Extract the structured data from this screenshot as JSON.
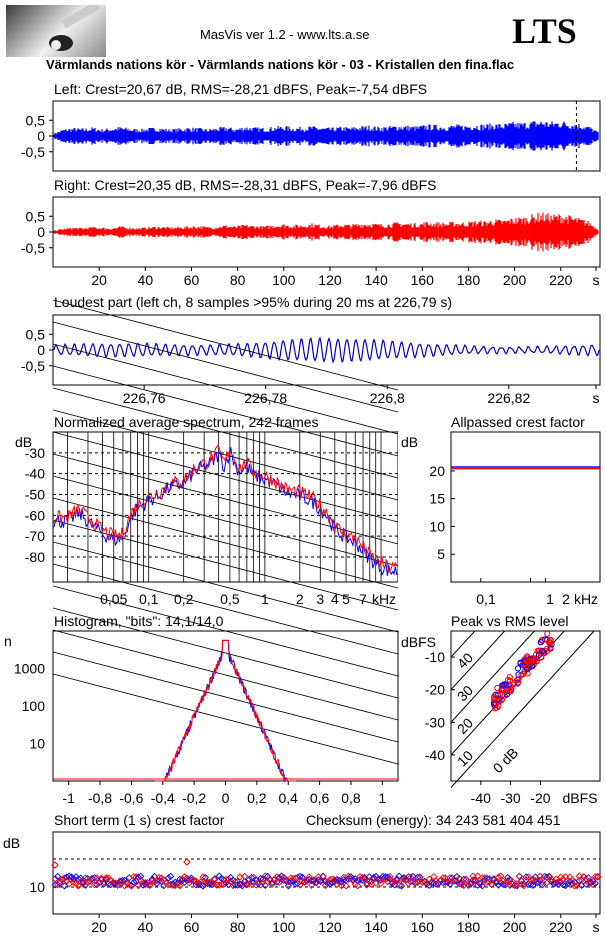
{
  "header": {
    "app_title": "MasVis ver 1.2 - www.lts.a.se",
    "logo_text": "LTS",
    "file_title": "Värmlands nations kör - Värmlands nations kör - 03 - Kristallen den fina.flac"
  },
  "panels": {
    "left": {
      "title": "Left: Crest=20,67 dB, RMS=-28,21 dBFS, Peak=-7,54 dBFS",
      "color": "#0000ff"
    },
    "right": {
      "title": "Right: Crest=20,35 dB, RMS=-28,31 dBFS, Peak=-7,96 dBFS",
      "color": "#ff0000"
    },
    "loudest": {
      "title": "Loudest part (left  ch, 8 samples >95% during 20 ms at 226,79 s)"
    },
    "spectrum": {
      "title": "Normalized average spectrum, 242 frames"
    },
    "crest": {
      "title": "Allpassed crest factor"
    },
    "histogram": {
      "title": "Histogram, \"bits\": 14,1/14,0"
    },
    "peakrms": {
      "title": "Peak vs RMS level"
    },
    "shortterm": {
      "title": "Short term (1 s) crest factor",
      "checksum": "Checksum (energy):   34 243 581 404 451"
    }
  },
  "chart_data": [
    {
      "type": "line",
      "title": "Left: Crest=20,67 dB, RMS=-28,21 dBFS, Peak=-7,54 dBFS",
      "xlim": [
        0,
        237
      ],
      "ylim": [
        -1,
        1
      ],
      "yticks": [
        "0,5",
        "0",
        "-0,5"
      ],
      "marker_line_x": 226.79,
      "series": [
        {
          "envelope": [
            0.05,
            0.12,
            0.14,
            0.13,
            0.15,
            0.12,
            0.14,
            0.16,
            0.13,
            0.12,
            0.14,
            0.15,
            0.12,
            0.13,
            0.15,
            0.14,
            0.12,
            0.14,
            0.16,
            0.13,
            0.17,
            0.15,
            0.14,
            0.16,
            0.18,
            0.15,
            0.16,
            0.17,
            0.15,
            0.14,
            0.16,
            0.15,
            0.17,
            0.18,
            0.16,
            0.17,
            0.19,
            0.18,
            0.17,
            0.2,
            0.19,
            0.18,
            0.2,
            0.19,
            0.21,
            0.2,
            0.22,
            0.21,
            0.24,
            0.23,
            0.26,
            0.28,
            0.25,
            0.27,
            0.24,
            0.22,
            0.17,
            0.06
          ]
        }
      ]
    },
    {
      "type": "line",
      "title": "Right: Crest=20,35 dB, RMS=-28,31 dBFS, Peak=-7,96 dBFS",
      "xlim": [
        0,
        237
      ],
      "ylim": [
        -1,
        1
      ],
      "yticks": [
        "0,5",
        "0",
        "-0,5"
      ],
      "x_ticks": [
        "20",
        "40",
        "60",
        "80",
        "100",
        "120",
        "140",
        "160",
        "180",
        "200",
        "220",
        "s"
      ],
      "series": [
        {
          "envelope": [
            0.03,
            0.06,
            0.08,
            0.07,
            0.09,
            0.08,
            0.07,
            0.1,
            0.08,
            0.07,
            0.09,
            0.1,
            0.08,
            0.09,
            0.1,
            0.11,
            0.09,
            0.1,
            0.12,
            0.1,
            0.13,
            0.11,
            0.1,
            0.13,
            0.14,
            0.12,
            0.13,
            0.15,
            0.12,
            0.11,
            0.14,
            0.13,
            0.15,
            0.16,
            0.14,
            0.15,
            0.17,
            0.16,
            0.15,
            0.18,
            0.17,
            0.16,
            0.18,
            0.17,
            0.2,
            0.19,
            0.22,
            0.21,
            0.25,
            0.26,
            0.3,
            0.34,
            0.3,
            0.32,
            0.28,
            0.24,
            0.18,
            0.04
          ]
        }
      ]
    },
    {
      "type": "line",
      "title": "Loudest part (left  ch, 8 samples >95% during 20 ms at 226,79 s)",
      "xlim": [
        226.745,
        226.835
      ],
      "ylim": [
        -1,
        1
      ],
      "yticks": [
        "0,5",
        "0",
        "-0,5"
      ],
      "x_ticks": [
        "226,76",
        "226,78",
        "226,8",
        "226,82",
        "s"
      ],
      "x_tick_values": [
        226.76,
        226.78,
        226.8,
        226.82
      ]
    },
    {
      "type": "line",
      "title": "Normalized average spectrum, 242 frames",
      "ylabel": "dB",
      "yticks": [
        "-30",
        "-40",
        "-50",
        "-60",
        "-70",
        "-80"
      ],
      "x_ticks": [
        "0,05",
        "0,1",
        "0,2",
        "0,5",
        "1",
        "2",
        "3",
        "4",
        "5",
        "7",
        "kHz"
      ],
      "series": [
        {
          "x": [
            0.02,
            0.025,
            0.03,
            0.04,
            0.05,
            0.06,
            0.07,
            0.08,
            0.1,
            0.12,
            0.15,
            0.2,
            0.25,
            0.3,
            0.35,
            0.4,
            0.45,
            0.5,
            0.55,
            0.6,
            0.7,
            0.8,
            1,
            1.2,
            1.5,
            2,
            2.5,
            3,
            3.5,
            4,
            5,
            6,
            7,
            8,
            10,
            12
          ],
          "y": [
            -62,
            -58,
            -62,
            -68,
            -71,
            -70,
            -60,
            -56,
            -52,
            -50,
            -46,
            -44,
            -38,
            -36,
            -34,
            -30,
            -36,
            -28,
            -34,
            -38,
            -36,
            -40,
            -42,
            -44,
            -48,
            -50,
            -52,
            -56,
            -60,
            -66,
            -70,
            -72,
            -76,
            -80,
            -84,
            -86
          ]
        }
      ]
    },
    {
      "type": "line",
      "title": "Allpassed crest factor",
      "ylabel": "dB",
      "yticks": [
        "20",
        "15",
        "10",
        "5"
      ],
      "ylim": [
        0,
        27
      ],
      "x_ticks": [
        "0,1",
        "1",
        "2",
        "kHz"
      ],
      "series": [
        {
          "name": "Left",
          "value": 20.7
        },
        {
          "name": "Right",
          "value": 20.4
        }
      ]
    },
    {
      "type": "line",
      "title": "Histogram, \"bits\": 14,1/14,0",
      "ylabel": "n",
      "yticks": [
        "1000",
        "100",
        "10"
      ],
      "x_ticks": [
        "-1",
        "-0,8",
        "-0,6",
        "-0,4",
        "-0,2",
        "0",
        "0,2",
        "0,4",
        "0,6",
        "0,8",
        "1"
      ],
      "xlim": [
        -1.1,
        1.1
      ]
    },
    {
      "type": "scatter",
      "title": "Peak vs RMS level",
      "ylabel": "dBFS",
      "xlabel": "dBFS",
      "yticks": [
        "-10",
        "-20",
        "-30",
        "-40"
      ],
      "x_ticks": [
        "-40",
        "-30",
        "-20",
        "dBFS"
      ],
      "diagonal_labels": [
        "40",
        "30",
        "20",
        "10",
        "0 dB"
      ]
    },
    {
      "type": "scatter",
      "title": "Short term (1 s) crest factor",
      "ylabel": "dB",
      "yticks": [
        "10"
      ],
      "x_ticks": [
        "20",
        "40",
        "60",
        "80",
        "100",
        "120",
        "140",
        "160",
        "180",
        "200",
        "220",
        "s"
      ]
    }
  ]
}
